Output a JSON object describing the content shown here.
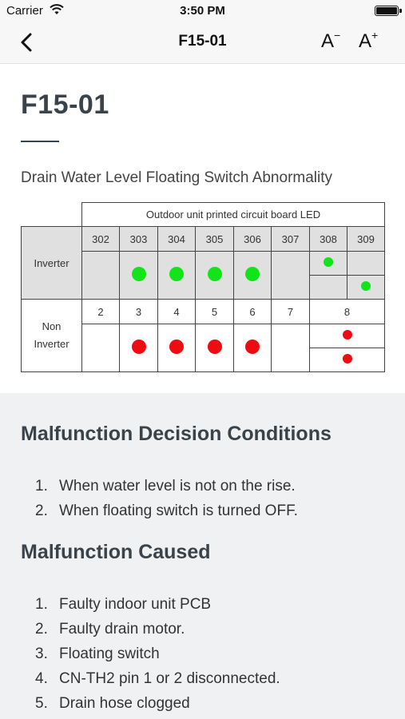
{
  "status_bar": {
    "carrier": "Carrier",
    "time": "3:50 PM"
  },
  "nav": {
    "title": "F15-01",
    "font_smaller": "A",
    "font_smaller_sign": "−",
    "font_larger": "A",
    "font_larger_sign": "+"
  },
  "content": {
    "code": "F15-01",
    "description": "Drain Water Level Floating Switch Abnormality"
  },
  "led_table": {
    "header": "Outdoor unit printed circuit board LED",
    "inverter": {
      "label": "Inverter",
      "columns": [
        "302",
        "303",
        "304",
        "305",
        "306",
        "307",
        "308",
        "309"
      ],
      "leds": {
        "302": "off",
        "303": "on",
        "304": "on",
        "305": "on",
        "306": "on",
        "307": "off",
        "308_upper": "on",
        "309_lower": "on"
      },
      "led_color": "#11e51a"
    },
    "non_inverter": {
      "label_line1": "Non",
      "label_line2": "Inverter",
      "columns": [
        "2",
        "3",
        "4",
        "5",
        "6",
        "7",
        "8"
      ],
      "leds": {
        "2": "off",
        "3": "on",
        "4": "on",
        "5": "on",
        "6": "on",
        "7": "off",
        "8_upper": "on",
        "8_lower": "on"
      },
      "led_color": "#ef0b12"
    }
  },
  "decision_conditions": {
    "heading": "Malfunction Decision Conditions",
    "items": [
      {
        "num": "1.",
        "text": "When water level is not on the rise."
      },
      {
        "num": "2.",
        "text": "When floating switch is turned OFF."
      }
    ]
  },
  "causes": {
    "heading": "Malfunction Caused",
    "items": [
      {
        "num": "1.",
        "text": "Faulty indoor unit PCB"
      },
      {
        "num": "2.",
        "text": "Faulty drain motor."
      },
      {
        "num": "3.",
        "text": "Floating switch"
      },
      {
        "num": "4.",
        "text": "CN-TH2 pin 1 or 2 disconnected."
      },
      {
        "num": "5.",
        "text": "Drain hose clogged"
      }
    ]
  }
}
